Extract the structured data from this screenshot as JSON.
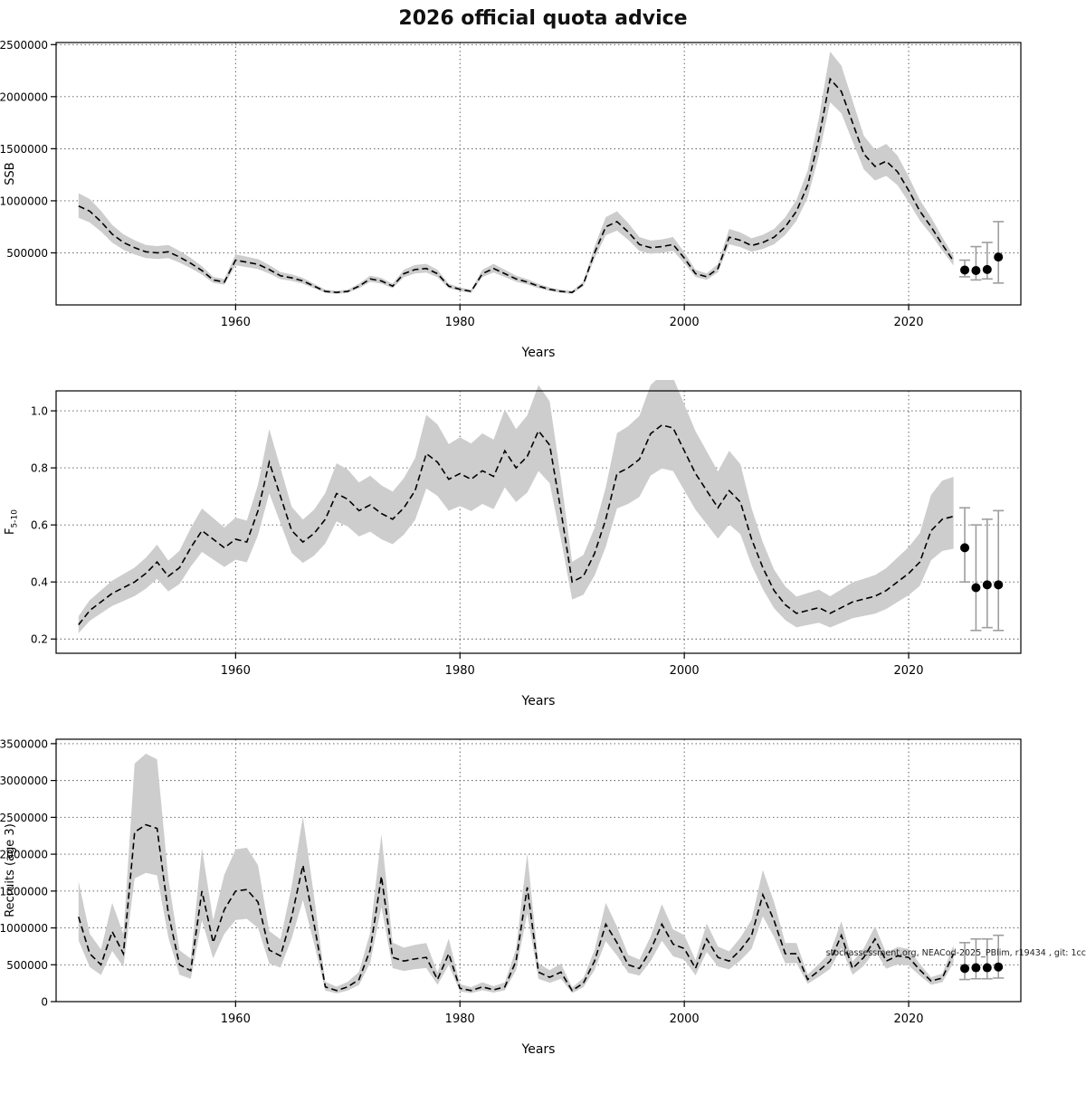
{
  "title": "2026 official quota advice",
  "watermark": "stockassessment.org, NEACod-2025_PBlim, r19434 , git: 1cc",
  "colors": {
    "band": "#cdcdcd",
    "line": "#000000",
    "grid": "#555555",
    "box": "#000000",
    "forecast_bar": "#9e9e9e",
    "forecast_dot": "#000000"
  },
  "chart_data": [
    {
      "type": "line",
      "name": "ssb",
      "title": "",
      "xlabel": "Years",
      "ylabel": "SSB",
      "x_start": 1946,
      "x_end": 2024,
      "xlim": [
        1944,
        2030
      ],
      "ylim": [
        0,
        2520000
      ],
      "xticks": [
        1960,
        1980,
        2000,
        2020
      ],
      "yticks": [
        500000,
        1000000,
        1500000,
        2000000,
        2500000
      ],
      "ytick_labels": [
        "500000",
        "1000000",
        "1500000",
        "2000000",
        "2500000"
      ],
      "grid": true,
      "line_style": "dashed",
      "band": {
        "u0": 0.13,
        "u1": 0.12,
        "l0": 0.12,
        "l1": 0.1
      },
      "values": [
        950000,
        900000,
        800000,
        680000,
        600000,
        550000,
        510000,
        500000,
        510000,
        460000,
        400000,
        330000,
        240000,
        220000,
        430000,
        410000,
        390000,
        340000,
        280000,
        260000,
        230000,
        180000,
        130000,
        120000,
        130000,
        180000,
        250000,
        230000,
        180000,
        300000,
        340000,
        350000,
        300000,
        180000,
        150000,
        130000,
        300000,
        350000,
        300000,
        250000,
        220000,
        180000,
        150000,
        130000,
        120000,
        200000,
        500000,
        750000,
        800000,
        700000,
        580000,
        550000,
        560000,
        580000,
        450000,
        300000,
        270000,
        350000,
        650000,
        620000,
        570000,
        600000,
        650000,
        750000,
        900000,
        1150000,
        1600000,
        2170000,
        2050000,
        1750000,
        1450000,
        1330000,
        1380000,
        1280000,
        1100000,
        900000,
        750000,
        580000,
        420000
      ],
      "forecast": {
        "x": [
          2025,
          2026,
          2027,
          2028
        ],
        "y": [
          335000,
          330000,
          340000,
          460000
        ],
        "lower": [
          270000,
          240000,
          250000,
          210000
        ],
        "upper": [
          430000,
          560000,
          600000,
          800000
        ]
      }
    },
    {
      "type": "line",
      "name": "fishing-mortality",
      "title": "",
      "xlabel": "Years",
      "ylabel": "F",
      "ylabel_sub": "5-10",
      "x_start": 1946,
      "x_end": 2024,
      "xlim": [
        1944,
        2030
      ],
      "ylim": [
        0.15,
        1.07
      ],
      "xticks": [
        1960,
        1980,
        2000,
        2020
      ],
      "yticks": [
        0.2,
        0.4,
        0.6,
        0.8,
        1.0
      ],
      "ytick_labels": [
        "0.2",
        "0.4",
        "0.6",
        "0.8",
        "1.0"
      ],
      "grid": true,
      "line_style": "dashed",
      "band": {
        "u0": 0.12,
        "u1": 0.22,
        "l0": 0.12,
        "l1": 0.18
      },
      "values": [
        0.25,
        0.3,
        0.33,
        0.36,
        0.38,
        0.4,
        0.43,
        0.47,
        0.42,
        0.45,
        0.52,
        0.58,
        0.55,
        0.52,
        0.55,
        0.54,
        0.65,
        0.82,
        0.7,
        0.58,
        0.54,
        0.57,
        0.62,
        0.71,
        0.69,
        0.65,
        0.67,
        0.64,
        0.62,
        0.66,
        0.72,
        0.85,
        0.82,
        0.76,
        0.78,
        0.76,
        0.79,
        0.77,
        0.86,
        0.8,
        0.84,
        0.93,
        0.88,
        0.65,
        0.4,
        0.42,
        0.5,
        0.62,
        0.78,
        0.8,
        0.83,
        0.92,
        0.95,
        0.94,
        0.86,
        0.78,
        0.72,
        0.66,
        0.72,
        0.68,
        0.55,
        0.45,
        0.37,
        0.32,
        0.29,
        0.3,
        0.31,
        0.29,
        0.31,
        0.33,
        0.34,
        0.35,
        0.37,
        0.4,
        0.43,
        0.47,
        0.58,
        0.62,
        0.63
      ],
      "forecast": {
        "x": [
          2025,
          2026,
          2027,
          2028
        ],
        "y": [
          0.52,
          0.38,
          0.39,
          0.39
        ],
        "lower": [
          0.4,
          0.23,
          0.24,
          0.23
        ],
        "upper": [
          0.66,
          0.6,
          0.62,
          0.65
        ]
      }
    },
    {
      "type": "line",
      "name": "recruits",
      "title": "",
      "xlabel": "Years",
      "ylabel": "Recruits (age 3)",
      "x_start": 1946,
      "x_end": 2024,
      "xlim": [
        1944,
        2030
      ],
      "ylim": [
        0,
        3560000
      ],
      "xticks": [
        1960,
        1980,
        2000,
        2020
      ],
      "yticks": [
        0,
        500000,
        1000000,
        1500000,
        2000000,
        2500000,
        3000000,
        3500000
      ],
      "ytick_labels": [
        "0",
        "500000",
        "1000000",
        "1500000",
        "2000000",
        "2500000",
        "3000000",
        "3500000"
      ],
      "grid": true,
      "line_style": "dashed",
      "band": {
        "u0": 0.42,
        "u1": 0.18,
        "l0": 0.28,
        "l1": 0.18
      },
      "values": [
        1150000,
        650000,
        500000,
        950000,
        650000,
        2300000,
        2400000,
        2350000,
        1200000,
        500000,
        420000,
        1500000,
        800000,
        1250000,
        1500000,
        1520000,
        1350000,
        700000,
        620000,
        1150000,
        1850000,
        1050000,
        200000,
        150000,
        200000,
        300000,
        700000,
        1700000,
        600000,
        550000,
        580000,
        600000,
        300000,
        650000,
        180000,
        150000,
        200000,
        160000,
        200000,
        550000,
        1550000,
        400000,
        330000,
        400000,
        150000,
        250000,
        550000,
        1050000,
        800000,
        500000,
        450000,
        700000,
        1050000,
        780000,
        720000,
        450000,
        850000,
        600000,
        550000,
        700000,
        900000,
        1450000,
        1100000,
        650000,
        650000,
        300000,
        420000,
        550000,
        900000,
        450000,
        600000,
        850000,
        550000,
        620000,
        600000,
        430000,
        280000,
        320000,
        650000
      ],
      "forecast": {
        "x": [
          2025,
          2026,
          2027,
          2028
        ],
        "y": [
          450000,
          460000,
          460000,
          470000
        ],
        "lower": [
          300000,
          310000,
          310000,
          320000
        ],
        "upper": [
          800000,
          850000,
          850000,
          900000
        ]
      }
    }
  ]
}
